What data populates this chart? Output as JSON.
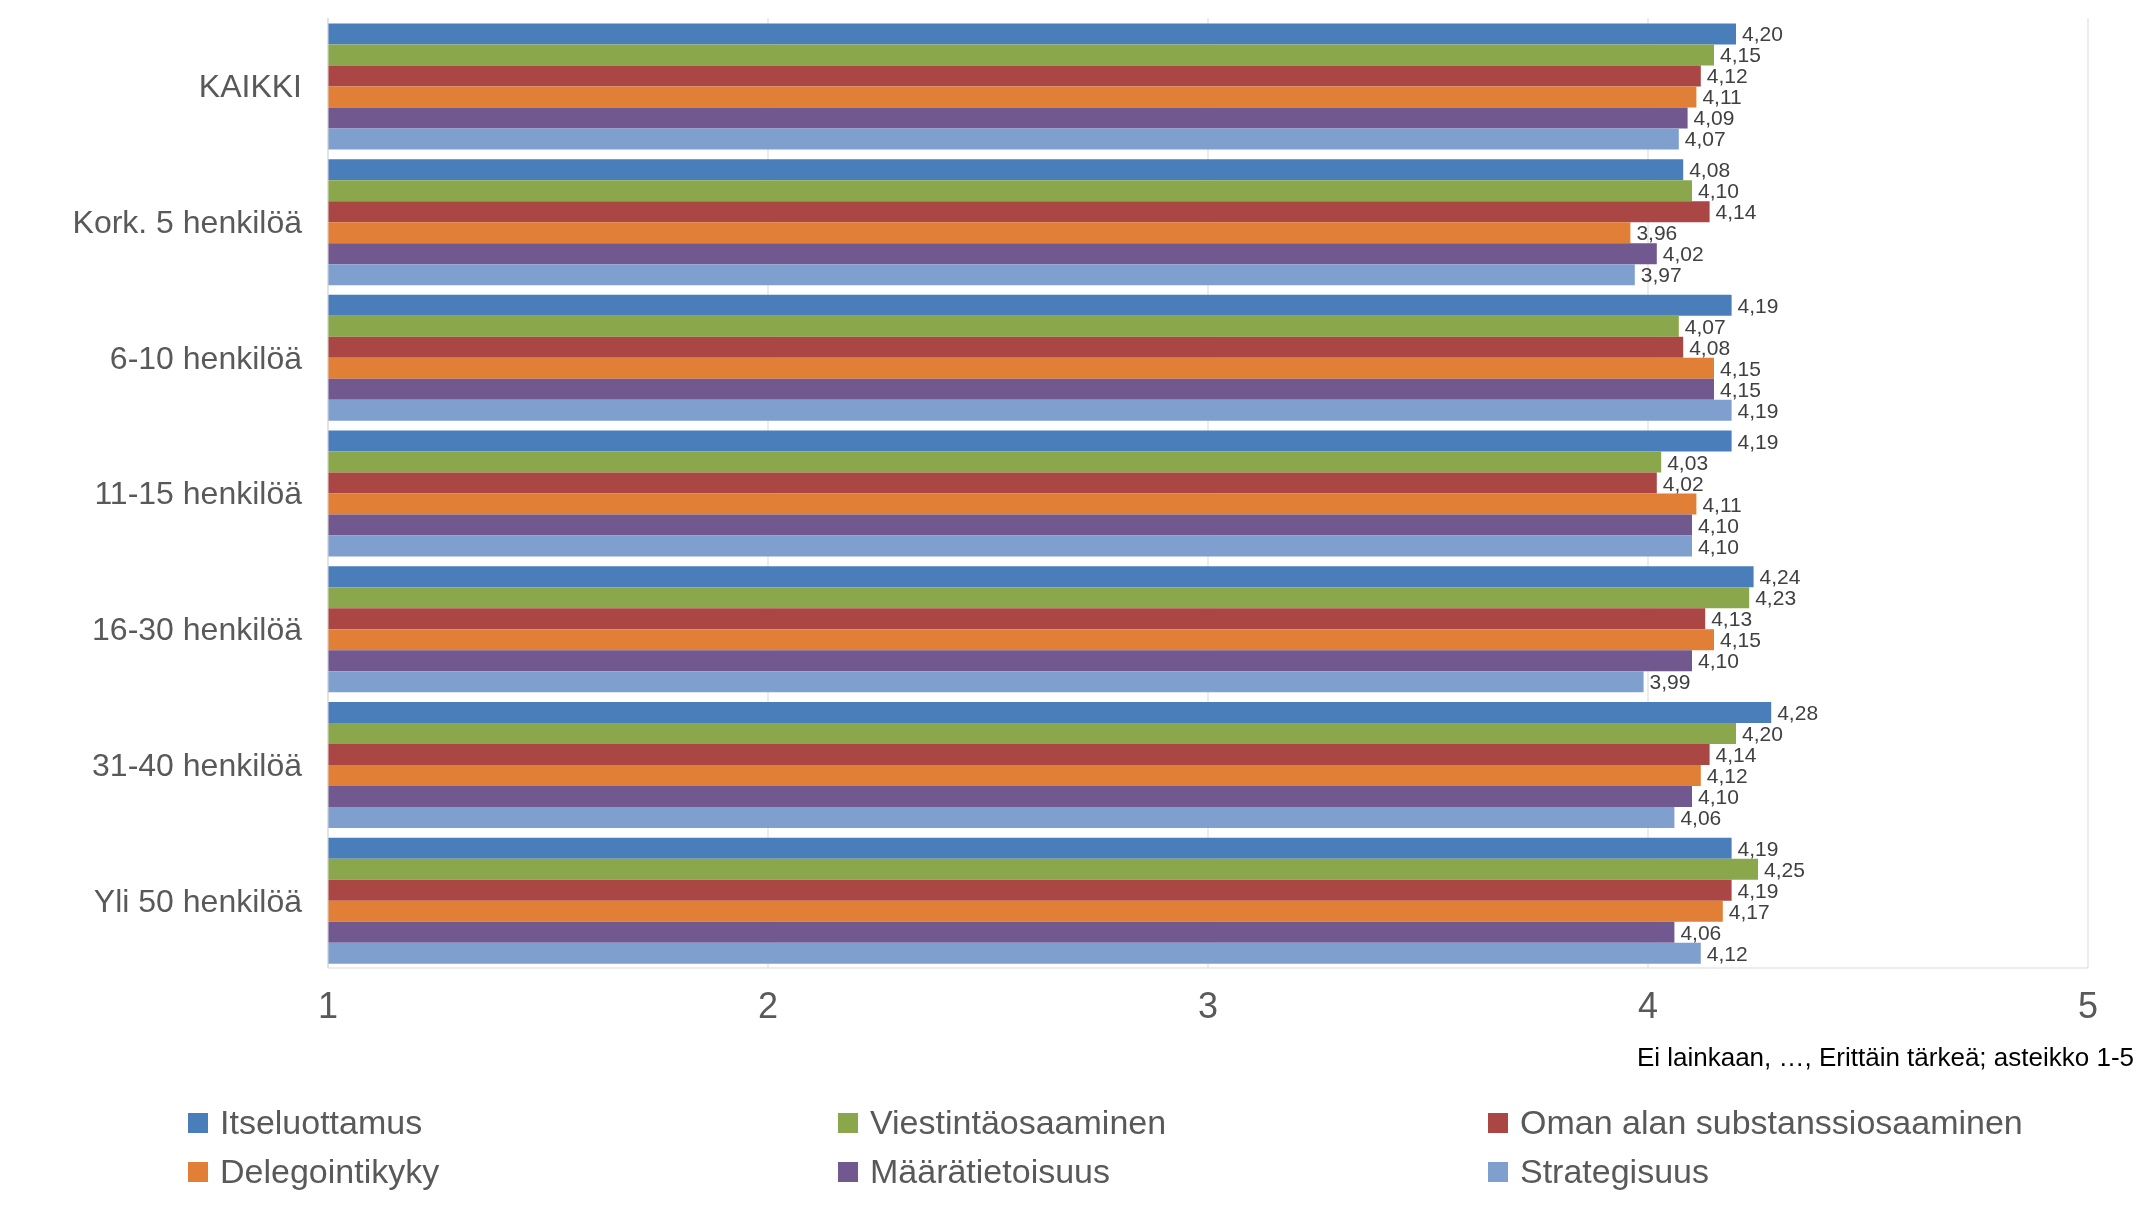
{
  "chart_data": {
    "type": "bar",
    "orientation": "horizontal",
    "xlabel": "Ei lainkaan, …, Erittäin tärkeä; asteikko 1-5",
    "categories": [
      "KAIKKI",
      "Kork. 5 henkilöä",
      "6-10 henkilöä",
      "11-15 henkilöä",
      "16-30 henkilöä",
      "31-40 henkilöä",
      "Yli 50 henkilöä"
    ],
    "series": [
      {
        "name": "Itseluottamus",
        "color": "#4a7ebb",
        "values": [
          4.2,
          4.08,
          4.19,
          4.19,
          4.24,
          4.28,
          4.19
        ],
        "value_labels": [
          "4,20",
          "4,08",
          "4,19",
          "4,19",
          "4,24",
          "4,28",
          "4,19"
        ]
      },
      {
        "name": "Viestintäosaaminen",
        "color": "#8aa84b",
        "values": [
          4.15,
          4.1,
          4.07,
          4.03,
          4.23,
          4.2,
          4.25
        ],
        "value_labels": [
          "4,15",
          "4,10",
          "4,07",
          "4,03",
          "4,23",
          "4,20",
          "4,25"
        ]
      },
      {
        "name": "Oman alan substanssiosaaminen",
        "color": "#aa4643",
        "values": [
          4.12,
          4.14,
          4.08,
          4.02,
          4.13,
          4.14,
          4.19
        ],
        "value_labels": [
          "4,12",
          "4,14",
          "4,08",
          "4,02",
          "4,13",
          "4,14",
          "4,19"
        ]
      },
      {
        "name": "Delegointikyky",
        "color": "#e07f35",
        "values": [
          4.11,
          3.96,
          4.15,
          4.11,
          4.15,
          4.12,
          4.17
        ],
        "value_labels": [
          "4,11",
          "3,96",
          "4,15",
          "4,11",
          "4,15",
          "4,12",
          "4,17"
        ]
      },
      {
        "name": "Määrätietoisuus",
        "color": "#71588f",
        "values": [
          4.09,
          4.02,
          4.15,
          4.1,
          4.1,
          4.1,
          4.06
        ],
        "value_labels": [
          "4,09",
          "4,02",
          "4,15",
          "4,10",
          "4,10",
          "4,10",
          "4,06"
        ]
      },
      {
        "name": "Strategisuus",
        "color": "#7f9fcf",
        "values": [
          4.07,
          3.97,
          4.19,
          4.1,
          3.99,
          4.06,
          4.12
        ],
        "value_labels": [
          "4,07",
          "3,97",
          "4,19",
          "4,10",
          "3,99",
          "4,06",
          "4,12"
        ]
      }
    ],
    "xlim": [
      1,
      5
    ],
    "xticks": [
      1,
      2,
      3,
      4,
      5
    ],
    "grid": "x",
    "legend": "bottom"
  }
}
